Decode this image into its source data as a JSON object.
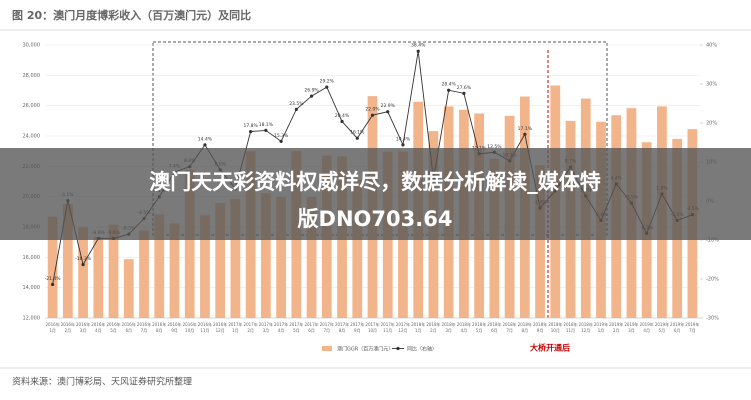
{
  "header": {
    "title": "图 20：澳门月度博彩收入（百万澳门元）及同比"
  },
  "chart_data": {
    "type": "bar",
    "categories": [
      {
        "year": "2016年",
        "month": "1月"
      },
      {
        "year": "2016年",
        "month": "2月"
      },
      {
        "year": "2016年",
        "month": "3月"
      },
      {
        "year": "2016年",
        "month": "4月"
      },
      {
        "year": "2016年",
        "month": "5月"
      },
      {
        "year": "2016年",
        "month": "6月"
      },
      {
        "year": "2016年",
        "month": "7月"
      },
      {
        "year": "2016年",
        "month": "8月"
      },
      {
        "year": "2016年",
        "month": "9月"
      },
      {
        "year": "2016年",
        "month": "10月"
      },
      {
        "year": "2016年",
        "month": "11月"
      },
      {
        "year": "2016年",
        "month": "12月"
      },
      {
        "year": "2017年",
        "month": "1月"
      },
      {
        "year": "2017年",
        "month": "2月"
      },
      {
        "year": "2017年",
        "month": "3月"
      },
      {
        "year": "2017年",
        "month": "4月"
      },
      {
        "year": "2017年",
        "month": "5月"
      },
      {
        "year": "2017年",
        "month": "6月"
      },
      {
        "year": "2017年",
        "month": "7月"
      },
      {
        "year": "2017年",
        "month": "8月"
      },
      {
        "year": "2017年",
        "month": "9月"
      },
      {
        "year": "2017年",
        "month": "10月"
      },
      {
        "year": "2017年",
        "month": "11月"
      },
      {
        "year": "2017年",
        "month": "12月"
      },
      {
        "year": "2018年",
        "month": "1月"
      },
      {
        "year": "2018年",
        "month": "2月"
      },
      {
        "year": "2018年",
        "month": "3月"
      },
      {
        "year": "2018年",
        "month": "4月"
      },
      {
        "year": "2018年",
        "month": "5月"
      },
      {
        "year": "2018年",
        "month": "6月"
      },
      {
        "year": "2018年",
        "month": "7月"
      },
      {
        "year": "2018年",
        "month": "8月"
      },
      {
        "year": "2018年",
        "month": "9月"
      },
      {
        "year": "2018年",
        "month": "10月"
      },
      {
        "year": "2018年",
        "month": "11月"
      },
      {
        "year": "2018年",
        "month": "12月"
      },
      {
        "year": "2019年",
        "month": "1月"
      },
      {
        "year": "2019年",
        "month": "2月"
      },
      {
        "year": "2019年",
        "month": "3月"
      },
      {
        "year": "2019年",
        "month": "4月"
      },
      {
        "year": "2019年",
        "month": "5月"
      },
      {
        "year": "2019年",
        "month": "6月"
      },
      {
        "year": "2019年",
        "month": "7月"
      }
    ],
    "series": [
      {
        "name": "澳门GGR（百万澳门元）",
        "color": "#f2b58b",
        "type": "bar",
        "values": [
          18674,
          19521,
          17981,
          17338,
          18151,
          15881,
          17768,
          18831,
          18229,
          21779,
          18767,
          19583,
          19855,
          22994,
          20239,
          19986,
          23012,
          19990,
          22706,
          22661,
          21104,
          26627,
          22960,
          22975,
          26260,
          24323,
          25951,
          25728,
          25489,
          22490,
          25327,
          26602,
          22087,
          27330,
          24999,
          26468,
          24942,
          25370,
          25836,
          23587,
          25952,
          23812,
          24453
        ]
      },
      {
        "name": "同比（右轴）",
        "color": "#333333",
        "type": "line",
        "axis": "y2",
        "values": [
          -21.4,
          0.1,
          -16.3,
          -9.6,
          -9.6,
          -8.5,
          -4.5,
          1.1,
          7.4,
          8.8,
          14.4,
          8.0,
          3.1,
          17.8,
          18.1,
          15.3,
          23.5,
          26.9,
          29.2,
          20.4,
          16.1,
          22.0,
          22.9,
          14.4,
          38.4,
          5.7,
          28.4,
          27.6,
          12.1,
          12.5,
          10.3,
          17.1,
          -1.8,
          2.6,
          8.7,
          1.3,
          -5.0,
          4.4,
          -0.5,
          -8.3,
          1.8,
          -5.0,
          -3.5
        ],
        "value_labels": [
          "-21.4%",
          "0.1%",
          "-16.3%",
          "-9.6%",
          "-9.6%",
          "-8.5%",
          "-4.5%",
          "1.1%",
          "7.4%",
          "8.8%",
          "14.4%",
          "8.0%",
          "3.1%",
          "17.8%",
          "18.1%",
          "15.3%",
          "23.5%",
          "26.9%",
          "29.2%",
          "20.4%",
          "16.1%",
          "22.0%",
          "22.9%",
          "14.4%",
          "38.4%",
          "5.7%",
          "28.4%",
          "27.6%",
          "12.1%",
          "12.5%",
          "10.3%",
          "17.1%",
          "-1.8%",
          "2.6%",
          "8.7%",
          "1.3%",
          "-5.0%",
          "4.4%",
          "-0.5%",
          "-8.3%",
          "1.8%",
          "-5.0%",
          "-3.5%"
        ]
      }
    ],
    "ylim": [
      12000,
      30000
    ],
    "yticks": [
      {
        "value": 12000,
        "label": "12,000"
      },
      {
        "value": 14000,
        "label": "14,000"
      },
      {
        "value": 16000,
        "label": "16,000"
      },
      {
        "value": 18000,
        "label": "18,000"
      },
      {
        "value": 20000,
        "label": "20,000"
      },
      {
        "value": 22000,
        "label": "22,000"
      },
      {
        "value": 24000,
        "label": "24,000"
      },
      {
        "value": 26000,
        "label": "26,000"
      },
      {
        "value": 28000,
        "label": "28,000"
      },
      {
        "value": 30000,
        "label": "30,000"
      }
    ],
    "y2lim": [
      -30,
      40
    ],
    "y2ticks": [
      {
        "value": -30,
        "label": "-30%"
      },
      {
        "value": -20,
        "label": "-20%"
      },
      {
        "value": -10,
        "label": "-10%"
      },
      {
        "value": 0,
        "label": "0%"
      },
      {
        "value": 10,
        "label": "10%"
      },
      {
        "value": 20,
        "label": "20%"
      },
      {
        "value": 30,
        "label": "30%"
      },
      {
        "value": 40,
        "label": "40%"
      }
    ],
    "grid": true,
    "annotation": "大桥开通后"
  },
  "overlay": {
    "lines": [
      "澳门天天彩资料权威详尽，数据分析解读_媒体特",
      "版DNO703.64"
    ]
  },
  "footer": {
    "source": "资料来源：澳门博彩局、天风证券研究所整理"
  }
}
